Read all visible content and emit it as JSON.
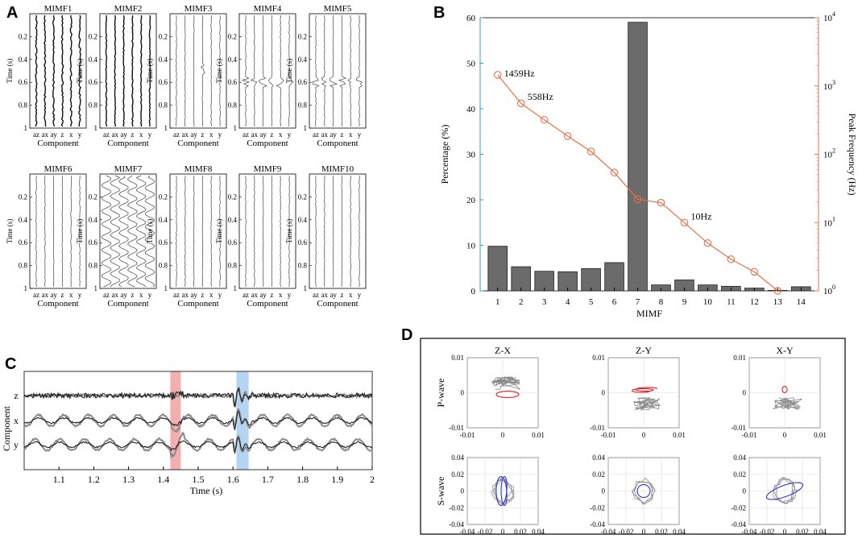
{
  "panels": {
    "A": {
      "label": "A",
      "subplots": [
        "MIMF1",
        "MIMF2",
        "MIMF3",
        "MIMF4",
        "MIMF5",
        "MIMF6",
        "MIMF7",
        "MIMF8",
        "MIMF9",
        "MIMF10"
      ],
      "ylabel": "Time (s)",
      "xlabel": "Component",
      "xtick_labels": [
        "az",
        "ax",
        "ay",
        "z",
        "x",
        "y"
      ],
      "yticks": [
        "0.2",
        "0.4",
        "0.6",
        "0.8",
        "1"
      ]
    },
    "B": {
      "label": "B",
      "ylabel_left": "Percentage (%)",
      "ylabel_right": "Peak Frequency (Hz)",
      "xlabel": "MIMF",
      "annotations": [
        "1459Hz",
        "558Hz",
        "10Hz"
      ]
    },
    "C": {
      "label": "C",
      "ylabel": "Component",
      "xlabel": "Time (s)",
      "traces": [
        "z",
        "x",
        "y"
      ],
      "xtick_labels": [
        "1.1",
        "1.2",
        "1.3",
        "1.4",
        "1.5",
        "1.6",
        "1.7",
        "1.8",
        "1.9",
        "2"
      ]
    },
    "D": {
      "label": "D",
      "column_titles": [
        "Z-X",
        "Z-Y",
        "X-Y"
      ],
      "row_labels": [
        "P-wave",
        "S-wave"
      ],
      "p_ticks": [
        "-0.01",
        "0",
        "0.01"
      ],
      "s_ticks": [
        "-0.04",
        "-0.02",
        "0",
        "0.02",
        "0.04"
      ]
    }
  },
  "chart_data": [
    {
      "type": "bar",
      "panel": "B",
      "categories": [
        "1",
        "2",
        "3",
        "4",
        "5",
        "6",
        "7",
        "8",
        "9",
        "10",
        "11",
        "12",
        "13",
        "14"
      ],
      "values": [
        9.8,
        5.3,
        4.3,
        4.2,
        4.9,
        6.2,
        59,
        1.3,
        2.4,
        1.3,
        1.0,
        0.6,
        0.1,
        0.9
      ],
      "ylim": [
        0,
        60
      ],
      "yticks": [
        0,
        10,
        20,
        30,
        40,
        50,
        60
      ],
      "ylabel": "Percentage (%)",
      "xlabel": "MIMF",
      "color": "#6b6b6b"
    },
    {
      "type": "line",
      "panel": "B",
      "axis": "right-log",
      "x": [
        1,
        2,
        3,
        4,
        5,
        6,
        7,
        8,
        9,
        10,
        11,
        12,
        13
      ],
      "y": [
        1459,
        558,
        320,
        185,
        110,
        54,
        22,
        19.5,
        10,
        5,
        2.9,
        1.9,
        1
      ],
      "ylim": [
        1,
        10000
      ],
      "yticks": [
        "10^0",
        "10^1",
        "10^2",
        "10^3",
        "10^4"
      ],
      "ylabel": "Peak Frequency (Hz)",
      "color": "#e8704a"
    },
    {
      "type": "line",
      "panel": "C",
      "series": [
        {
          "name": "z"
        },
        {
          "name": "x"
        },
        {
          "name": "y"
        }
      ],
      "xlim": [
        1.0,
        2.0
      ],
      "xticks": [
        1.1,
        1.2,
        1.3,
        1.4,
        1.5,
        1.6,
        1.7,
        1.8,
        1.9,
        2.0
      ],
      "highlights": [
        {
          "name": "P-wave window",
          "start": 1.42,
          "end": 1.45,
          "color": "#f2a0a0"
        },
        {
          "name": "S-wave window",
          "start": 1.61,
          "end": 1.645,
          "color": "#a8cdee"
        }
      ],
      "xlabel": "Time (s)",
      "ylabel": "Component"
    }
  ],
  "colors": {
    "bar": "#6b6b6b",
    "line": "#e8704a",
    "left_axis": "#2aa3c9",
    "right_axis": "#e8704a",
    "p_highlight": "#f2a0a0",
    "s_highlight": "#a8cdee",
    "p_orbit": "#e02020",
    "s_orbit": "#2a36c8",
    "gray_trace": "#8a8a8a"
  }
}
